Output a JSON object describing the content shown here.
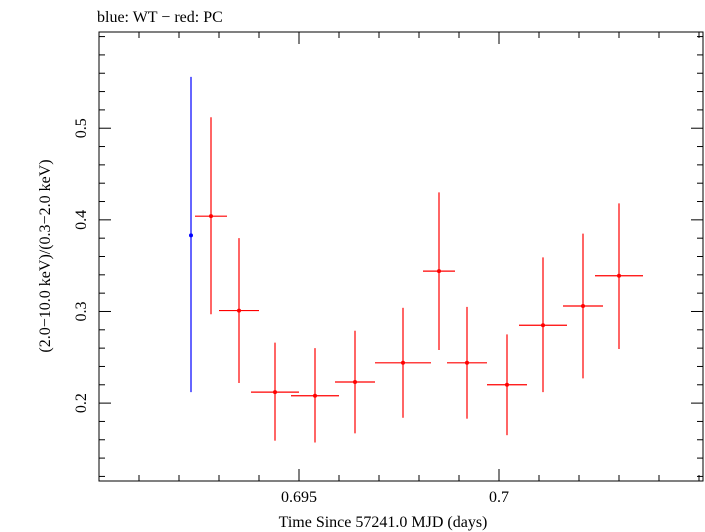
{
  "chart_data": {
    "type": "scatter",
    "title": "blue: WT − red: PC",
    "xlabel": "Time Since 57241.0 MJD (days)",
    "ylabel": "(2.0−10.0 keV)/(0.3−2.0 keV)",
    "xlim": [
      0.69,
      0.7051
    ],
    "ylim": [
      0.115,
      0.605
    ],
    "x_ticks": [
      0.695,
      0.7
    ],
    "x_tick_labels": [
      "0.695",
      "0.7"
    ],
    "y_ticks": [
      0.2,
      0.3,
      0.4,
      0.5
    ],
    "y_tick_labels": [
      "0.2",
      "0.3",
      "0.4",
      "0.5"
    ],
    "grid": false,
    "series": [
      {
        "name": "WT",
        "color": "#0000ff",
        "points": [
          {
            "x": 0.6923,
            "y": 0.383,
            "xerr": 0.0,
            "ylo": 0.212,
            "yhi": 0.556
          }
        ]
      },
      {
        "name": "PC",
        "color": "#ff0000",
        "points": [
          {
            "x": 0.6928,
            "y": 0.404,
            "xerr": 0.0004,
            "ylo": 0.297,
            "yhi": 0.512
          },
          {
            "x": 0.6935,
            "y": 0.301,
            "xerr": 0.0005,
            "ylo": 0.222,
            "yhi": 0.38
          },
          {
            "x": 0.6944,
            "y": 0.212,
            "xerr": 0.0006,
            "ylo": 0.159,
            "yhi": 0.266
          },
          {
            "x": 0.6954,
            "y": 0.208,
            "xerr": 0.0006,
            "ylo": 0.157,
            "yhi": 0.26
          },
          {
            "x": 0.6964,
            "y": 0.223,
            "xerr": 0.0005,
            "ylo": 0.167,
            "yhi": 0.279
          },
          {
            "x": 0.6976,
            "y": 0.244,
            "xerr": 0.0007,
            "ylo": 0.184,
            "yhi": 0.304
          },
          {
            "x": 0.6985,
            "y": 0.344,
            "xerr": 0.0004,
            "ylo": 0.258,
            "yhi": 0.43
          },
          {
            "x": 0.6992,
            "y": 0.244,
            "xerr": 0.0005,
            "ylo": 0.183,
            "yhi": 0.305
          },
          {
            "x": 0.7002,
            "y": 0.22,
            "xerr": 0.0005,
            "ylo": 0.165,
            "yhi": 0.275
          },
          {
            "x": 0.7011,
            "y": 0.285,
            "xerr": 0.0006,
            "ylo": 0.212,
            "yhi": 0.359
          },
          {
            "x": 0.7021,
            "y": 0.306,
            "xerr": 0.0005,
            "ylo": 0.227,
            "yhi": 0.385
          },
          {
            "x": 0.703,
            "y": 0.339,
            "xerr": 0.0006,
            "ylo": 0.259,
            "yhi": 0.418
          }
        ]
      }
    ]
  }
}
